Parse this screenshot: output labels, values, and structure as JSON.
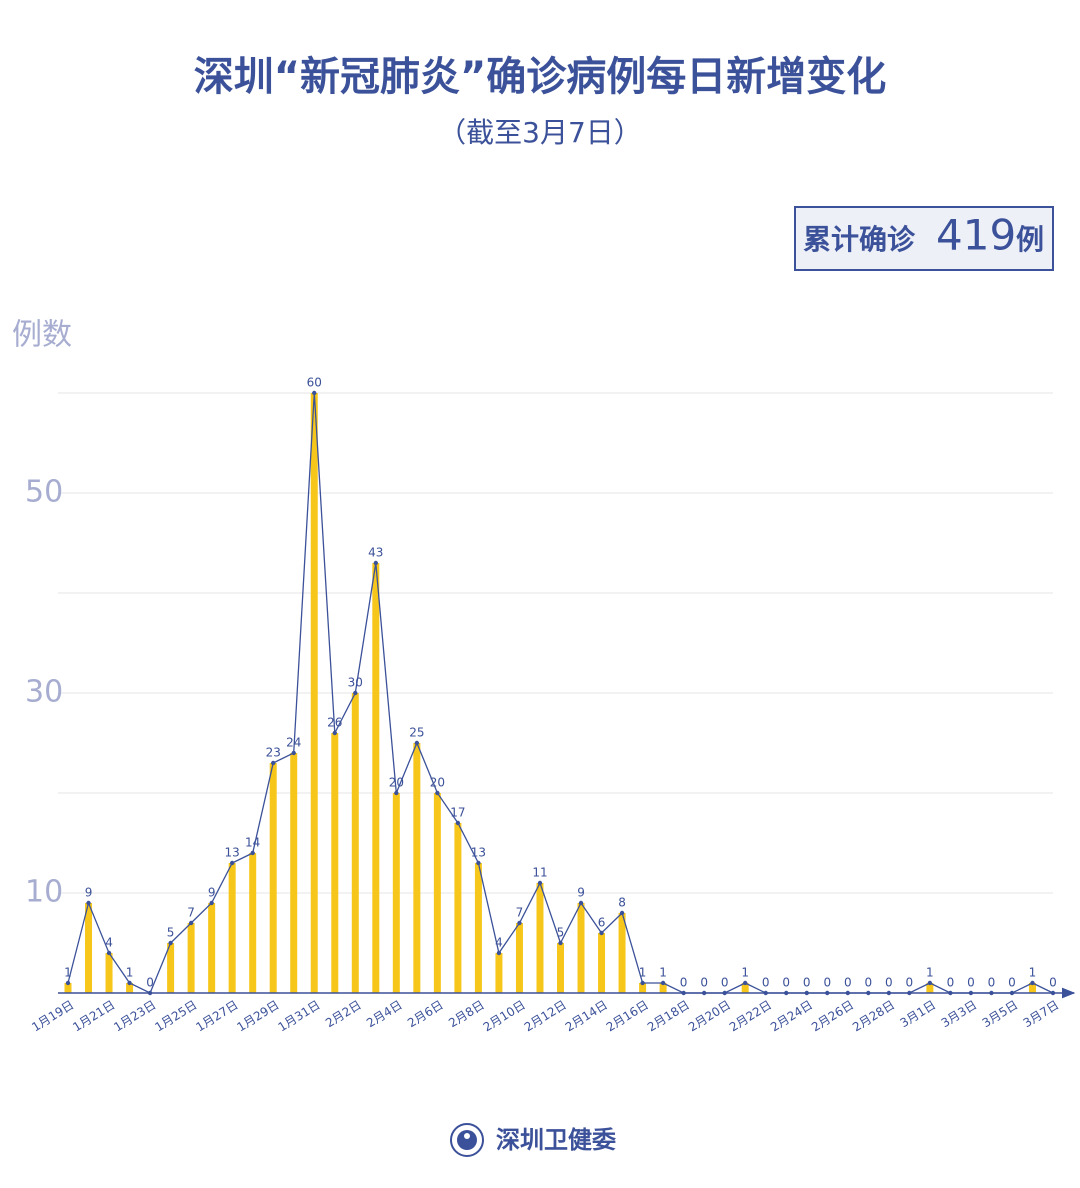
{
  "chart_data": {
    "type": "bar",
    "title": "深圳“新冠肺炎”确诊病例每日新增变化",
    "subtitle": "（截至3月7日）",
    "total": {
      "prefix": "累计确诊",
      "value": 419,
      "suffix": "例"
    },
    "y_label": "例数",
    "source": "深圳卫健委",
    "categories": [
      "1月19日",
      null,
      "1月21日",
      null,
      "1月23日",
      null,
      "1月25日",
      null,
      "1月27日",
      null,
      "1月29日",
      null,
      "1月31日",
      null,
      "2月2日",
      null,
      "2月4日",
      null,
      "2月6日",
      null,
      "2月8日",
      null,
      "2月10日",
      null,
      "2月12日",
      null,
      "2月14日",
      null,
      "2月16日",
      null,
      "2月18日",
      null,
      "2月20日",
      null,
      "2月22日",
      null,
      "2月24日",
      null,
      "2月26日",
      null,
      "2月28日",
      null,
      "3月1日",
      null,
      "3月3日",
      null,
      "3月5日",
      null,
      "3月7日"
    ],
    "values": [
      1,
      9,
      4,
      1,
      0,
      5,
      7,
      9,
      13,
      14,
      23,
      24,
      60,
      26,
      30,
      43,
      20,
      25,
      20,
      17,
      13,
      4,
      7,
      11,
      5,
      9,
      6,
      8,
      1,
      1,
      0,
      0,
      0,
      1,
      0,
      0,
      0,
      0,
      0,
      0,
      0,
      0,
      1,
      0,
      0,
      0,
      0,
      1,
      0
    ],
    "color": "#f6c71a",
    "line_overlay": true,
    "line_color": "#3b5199",
    "ylim": [
      0,
      60
    ],
    "yticks": [
      10,
      30,
      50
    ],
    "ygrid": [
      10,
      20,
      30,
      40,
      50,
      60
    ],
    "grid": true
  }
}
